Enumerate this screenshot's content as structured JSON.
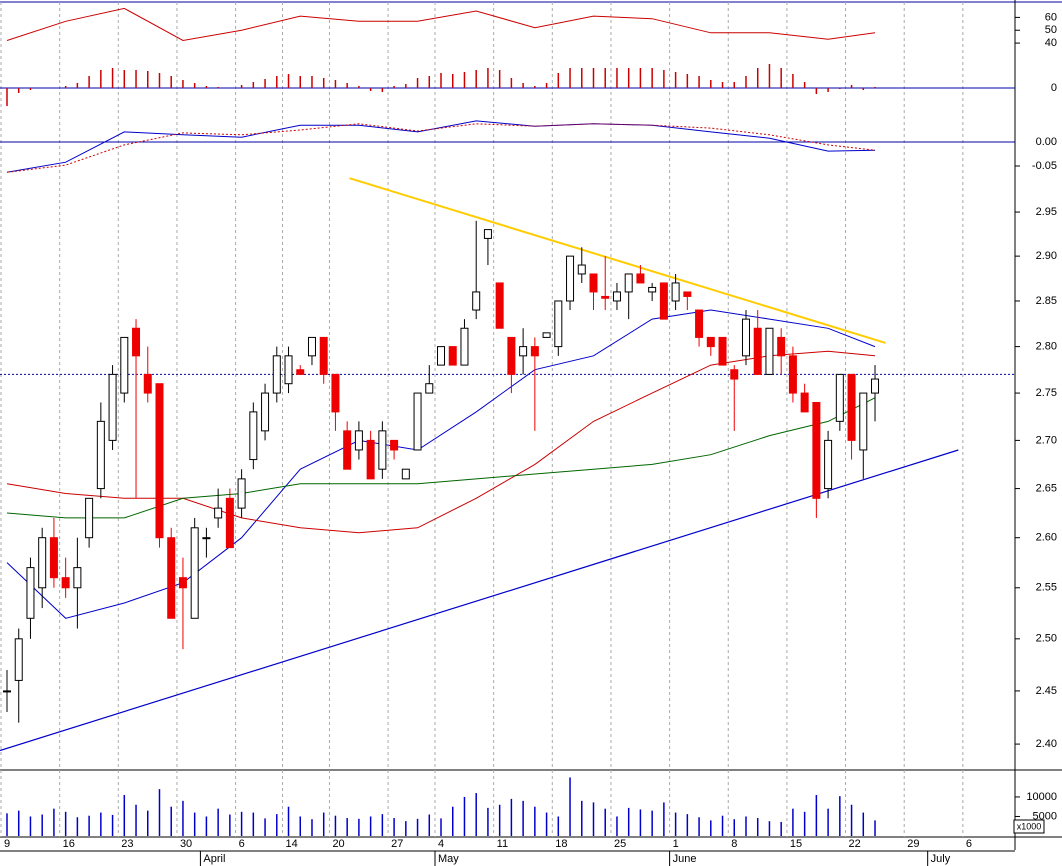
{
  "chart_data": {
    "type": "candlestick",
    "log_scale": true,
    "ylim": [
      2.376,
      3.016
    ],
    "yticks": [
      {
        "value": 2.4,
        "label": "2.40"
      },
      {
        "value": 2.45,
        "label": "2.45"
      },
      {
        "value": 2.5,
        "label": "2.50"
      },
      {
        "value": 2.55,
        "label": "2.55"
      },
      {
        "value": 2.6,
        "label": "2.60"
      },
      {
        "value": 2.65,
        "label": "2.65"
      },
      {
        "value": 2.7,
        "label": "2.70"
      },
      {
        "value": 2.75,
        "label": "2.75"
      },
      {
        "value": 2.8,
        "label": "2.80"
      },
      {
        "value": 2.85,
        "label": "2.85"
      },
      {
        "value": 2.9,
        "label": "2.90"
      },
      {
        "value": 2.95,
        "label": "2.95"
      }
    ],
    "xticks": [
      {
        "value": 0,
        "label": "9"
      },
      {
        "value": 5,
        "label": "16"
      },
      {
        "value": 10,
        "label": "23"
      },
      {
        "value": 15,
        "label": "30"
      },
      {
        "value": 20,
        "label": "6"
      },
      {
        "value": 24,
        "label": "14"
      },
      {
        "value": 28,
        "label": "20"
      },
      {
        "value": 33,
        "label": "27"
      },
      {
        "value": 37,
        "label": "4"
      },
      {
        "value": 42,
        "label": "11"
      },
      {
        "value": 47,
        "label": "18"
      },
      {
        "value": 52,
        "label": "25"
      },
      {
        "value": 57,
        "label": "1"
      },
      {
        "value": 62,
        "label": "8"
      },
      {
        "value": 67,
        "label": "15"
      },
      {
        "value": 72,
        "label": "22"
      },
      {
        "value": 77,
        "label": "29"
      },
      {
        "value": 82,
        "label": "6"
      }
    ],
    "month_ticks": [
      {
        "value": 17,
        "label": "April"
      },
      {
        "value": 37,
        "label": "May"
      },
      {
        "value": 57,
        "label": "June"
      },
      {
        "value": 79,
        "label": "July"
      }
    ],
    "up_color": "#ffffff",
    "down_color": "#ee0000",
    "x": [
      0,
      1,
      2,
      3,
      4,
      5,
      6,
      7,
      8,
      9,
      10,
      11,
      12,
      13,
      14,
      15,
      16,
      17,
      18,
      19,
      20,
      21,
      22,
      23,
      24,
      25,
      26,
      27,
      28,
      29,
      30,
      31,
      32,
      33,
      34,
      35,
      36,
      37,
      38,
      39,
      40,
      41,
      42,
      43,
      44,
      45,
      46,
      47,
      48,
      49,
      50,
      51,
      52,
      53,
      54,
      55,
      56,
      57,
      58,
      59,
      60,
      61,
      62,
      63,
      64,
      65,
      66,
      67,
      68,
      69,
      70,
      71,
      72,
      73,
      74
    ],
    "ohlc": [
      [
        2.45,
        2.47,
        2.43,
        2.45
      ],
      [
        2.46,
        2.51,
        2.42,
        2.5
      ],
      [
        2.52,
        2.58,
        2.5,
        2.57
      ],
      [
        2.55,
        2.61,
        2.53,
        2.6
      ],
      [
        2.6,
        2.62,
        2.55,
        2.56
      ],
      [
        2.56,
        2.58,
        2.54,
        2.55
      ],
      [
        2.55,
        2.6,
        2.51,
        2.57
      ],
      [
        2.6,
        2.64,
        2.59,
        2.64
      ],
      [
        2.65,
        2.74,
        2.64,
        2.72
      ],
      [
        2.7,
        2.78,
        2.69,
        2.77
      ],
      [
        2.75,
        2.81,
        2.74,
        2.81
      ],
      [
        2.82,
        2.83,
        2.64,
        2.79
      ],
      [
        2.77,
        2.8,
        2.74,
        2.75
      ],
      [
        2.76,
        2.76,
        2.59,
        2.6
      ],
      [
        2.6,
        2.61,
        2.52,
        2.52
      ],
      [
        2.56,
        2.58,
        2.49,
        2.55
      ],
      [
        2.52,
        2.62,
        2.52,
        2.61
      ],
      [
        2.6,
        2.61,
        2.58,
        2.6
      ],
      [
        2.62,
        2.65,
        2.61,
        2.63
      ],
      [
        2.64,
        2.65,
        2.59,
        2.59
      ],
      [
        2.63,
        2.67,
        2.62,
        2.66
      ],
      [
        2.68,
        2.74,
        2.67,
        2.73
      ],
      [
        2.71,
        2.76,
        2.7,
        2.75
      ],
      [
        2.75,
        2.8,
        2.74,
        2.79
      ],
      [
        2.76,
        2.8,
        2.75,
        2.79
      ],
      [
        2.775,
        2.78,
        2.77,
        2.77
      ],
      [
        2.79,
        2.81,
        2.78,
        2.81
      ],
      [
        2.81,
        2.81,
        2.76,
        2.77
      ],
      [
        2.77,
        2.77,
        2.71,
        2.73
      ],
      [
        2.71,
        2.72,
        2.67,
        2.67
      ],
      [
        2.69,
        2.72,
        2.68,
        2.71
      ],
      [
        2.7,
        2.71,
        2.66,
        2.66
      ],
      [
        2.67,
        2.72,
        2.66,
        2.71
      ],
      [
        2.7,
        2.7,
        2.68,
        2.69
      ],
      [
        2.66,
        2.67,
        2.66,
        2.67
      ],
      [
        2.69,
        2.75,
        2.69,
        2.75
      ],
      [
        2.75,
        2.78,
        2.75,
        2.76
      ],
      [
        2.78,
        2.8,
        2.78,
        2.8
      ],
      [
        2.8,
        2.8,
        2.78,
        2.78
      ],
      [
        2.78,
        2.83,
        2.78,
        2.82
      ],
      [
        2.84,
        2.94,
        2.83,
        2.86
      ],
      [
        2.92,
        2.93,
        2.89,
        2.93
      ],
      [
        2.87,
        2.87,
        2.82,
        2.82
      ],
      [
        2.81,
        2.81,
        2.75,
        2.77
      ],
      [
        2.79,
        2.82,
        2.77,
        2.8
      ],
      [
        2.8,
        2.81,
        2.71,
        2.79
      ],
      [
        2.81,
        2.81,
        2.81,
        2.815
      ],
      [
        2.8,
        2.85,
        2.79,
        2.85
      ],
      [
        2.85,
        2.9,
        2.84,
        2.9
      ],
      [
        2.88,
        2.91,
        2.87,
        2.89
      ],
      [
        2.88,
        2.88,
        2.84,
        2.86
      ],
      [
        2.855,
        2.9,
        2.84,
        2.853
      ],
      [
        2.85,
        2.87,
        2.84,
        2.86
      ],
      [
        2.86,
        2.88,
        2.83,
        2.88
      ],
      [
        2.88,
        2.89,
        2.87,
        2.87
      ],
      [
        2.86,
        2.87,
        2.85,
        2.865
      ],
      [
        2.87,
        2.87,
        2.83,
        2.83
      ],
      [
        2.85,
        2.88,
        2.84,
        2.87
      ],
      [
        2.86,
        2.86,
        2.84,
        2.855
      ],
      [
        2.84,
        2.84,
        2.8,
        2.81
      ],
      [
        2.81,
        2.81,
        2.79,
        2.8
      ],
      [
        2.81,
        2.81,
        2.78,
        2.78
      ],
      [
        2.775,
        2.78,
        2.71,
        2.765
      ],
      [
        2.79,
        2.84,
        2.78,
        2.83
      ],
      [
        2.82,
        2.84,
        2.77,
        2.77
      ],
      [
        2.77,
        2.82,
        2.77,
        2.82
      ],
      [
        2.81,
        2.82,
        2.77,
        2.79
      ],
      [
        2.79,
        2.8,
        2.74,
        2.75
      ],
      [
        2.75,
        2.76,
        2.73,
        2.73
      ],
      [
        2.74,
        2.74,
        2.62,
        2.64
      ],
      [
        2.65,
        2.71,
        2.64,
        2.7
      ],
      [
        2.72,
        2.77,
        2.71,
        2.77
      ],
      [
        2.77,
        2.77,
        2.68,
        2.7
      ],
      [
        2.69,
        2.75,
        2.66,
        2.75
      ],
      [
        2.75,
        2.78,
        2.72,
        2.765
      ]
    ],
    "sample_x": [
      0,
      5,
      10,
      15,
      20,
      25,
      30,
      35,
      40,
      45,
      50,
      55,
      60,
      65,
      70,
      74
    ],
    "moving_averages": [
      {
        "color": "#0000cc",
        "values": [
          2.575,
          2.52,
          2.535,
          2.555,
          2.6,
          2.67,
          2.7,
          2.69,
          2.73,
          2.775,
          2.79,
          2.83,
          2.84,
          2.83,
          2.82,
          2.8
        ]
      },
      {
        "color": "#cc0000",
        "values": [
          2.655,
          2.645,
          2.64,
          2.64,
          2.62,
          2.61,
          2.605,
          2.61,
          2.64,
          2.675,
          2.72,
          2.75,
          2.78,
          2.79,
          2.795,
          2.79
        ]
      },
      {
        "color": "#006600",
        "values": [
          2.625,
          2.62,
          2.62,
          2.64,
          2.645,
          2.655,
          2.655,
          2.655,
          2.66,
          2.665,
          2.67,
          2.675,
          2.685,
          2.705,
          2.72,
          2.745
        ]
      }
    ],
    "trendlines": [
      {
        "color": "#ffcc00",
        "x": [
          29.2,
          74.9
        ],
        "values": [
          2.989,
          2.804
        ]
      },
      {
        "color": "#0000cc",
        "x": [
          -0.6,
          81.1
        ],
        "values": [
          2.394,
          2.69
        ]
      }
    ],
    "reference_line": 2.77,
    "rsi": {
      "ylim": [
        5,
        72
      ],
      "yticks": [
        40,
        50,
        60
      ],
      "color": "#cc0000",
      "values": [
        42,
        57,
        67,
        42,
        50,
        61,
        57,
        57,
        65,
        52,
        61,
        59,
        48,
        48,
        43,
        48
      ]
    },
    "histogram": {
      "ylim": [
        -0.03,
        0.05
      ],
      "yticks": [
        0
      ],
      "color": "#cc0000",
      "values": [
        -0.018,
        -0.005,
        -0.002,
        0,
        0,
        0.002,
        0.005,
        0.012,
        0.018,
        0.02,
        0.018,
        0.018,
        0.017,
        0.015,
        0.012,
        0.008,
        0.005,
        0.002,
        0.001,
        0,
        0.003,
        0.006,
        0.009,
        0.012,
        0.014,
        0.012,
        0.012,
        0.01,
        0.008,
        0.005,
        0.002,
        -0.003,
        -0.004,
        0.002,
        0.004,
        0.01,
        0.012,
        0.015,
        0.014,
        0.016,
        0.018,
        0.02,
        0.018,
        0.01,
        0.005,
        0.002,
        0.005,
        0.015,
        0.02,
        0.02,
        0.02,
        0.02,
        0.02,
        0.02,
        0.02,
        0.02,
        0.018,
        0.016,
        0.014,
        0.012,
        0.008,
        0.006,
        0.006,
        0.012,
        0.02,
        0.024,
        0.02,
        0.014,
        0.006,
        -0.006,
        -0.004,
        -0.001,
        0.003,
        -0.002,
        0.001
      ]
    },
    "macd": {
      "ylim": [
        -0.0583,
        0.1125
      ],
      "yticks": [
        {
          "value": 0,
          "label": "0.00"
        },
        {
          "value": -0.05,
          "label": "-0.05"
        }
      ],
      "lines": [
        {
          "color": "#0000cc",
          "values": [
            -0.063,
            -0.042,
            0.021,
            0.015,
            0.01,
            0.035,
            0.035,
            0.021,
            0.044,
            0.033,
            0.038,
            0.035,
            0.021,
            0.008,
            -0.019,
            -0.017
          ]
        },
        {
          "color": "#cc0000",
          "values": [
            -0.063,
            -0.048,
            -0.006,
            0.019,
            0.015,
            0.025,
            0.038,
            0.023,
            0.038,
            0.033,
            0.038,
            0.035,
            0.029,
            0.015,
            -0.006,
            -0.017
          ]
        }
      ]
    },
    "volume": {
      "ylim": [
        0,
        16900
      ],
      "yticks": [
        10000,
        5000
      ],
      "unit": "x1000",
      "color": "#0000cc",
      "values": [
        5800,
        6500,
        5000,
        5500,
        7000,
        6200,
        4800,
        5200,
        6000,
        5400,
        10500,
        8000,
        6500,
        12000,
        7500,
        9000,
        6000,
        5000,
        7000,
        5500,
        6200,
        6000,
        4500,
        5600,
        7500,
        5000,
        4300,
        6000,
        5200,
        4600,
        4400,
        5000,
        5600,
        4600,
        3800,
        4400,
        5500,
        4500,
        7500,
        10000,
        11000,
        7200,
        8000,
        9500,
        9000,
        7500,
        6000,
        5000,
        15000,
        9000,
        8600,
        7000,
        5000,
        7200,
        6800,
        6500,
        8600,
        6000,
        5600,
        4800,
        4000,
        5200,
        4300,
        5000,
        4600,
        3800,
        3600,
        7000,
        6200,
        10500,
        7000,
        10200,
        8000,
        6000,
        4000
      ]
    }
  }
}
